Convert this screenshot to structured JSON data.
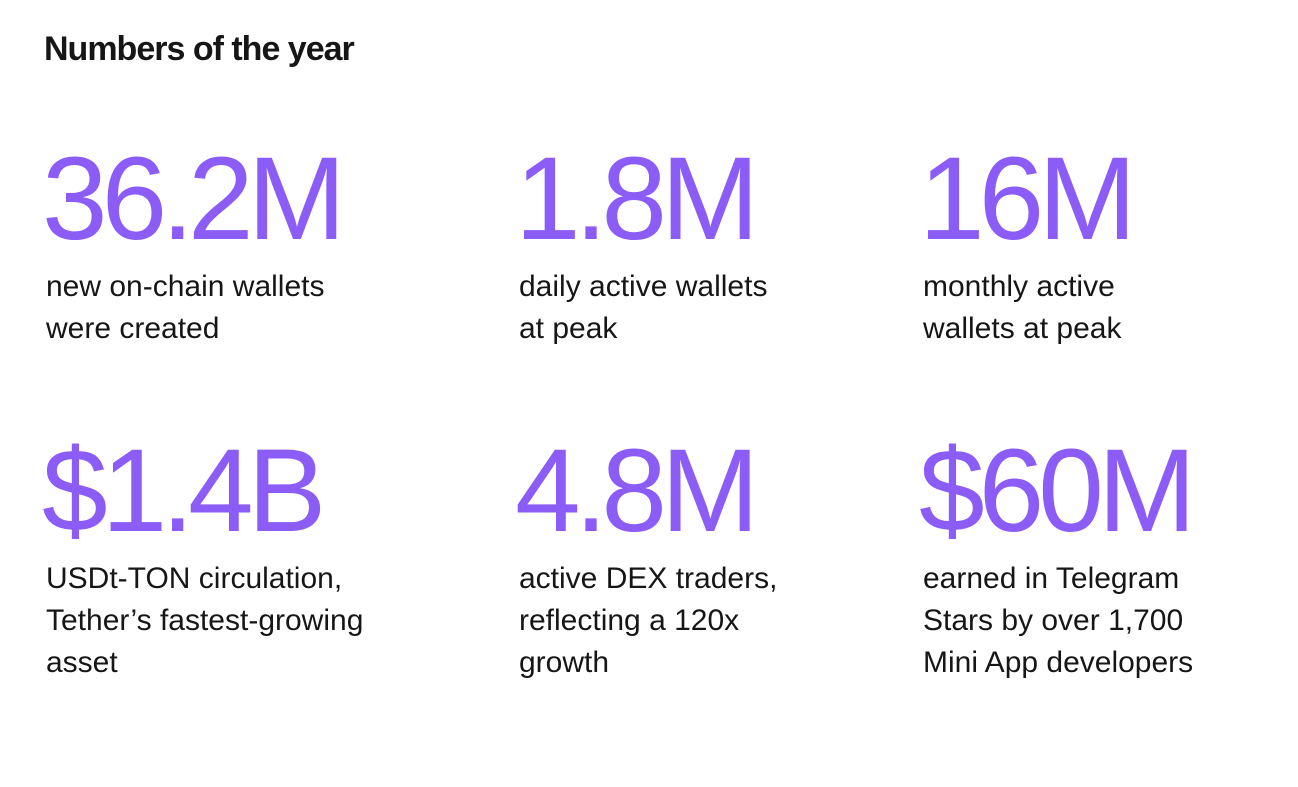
{
  "title": "Numbers of the year",
  "accent_color": "#8b5cf6",
  "stats": [
    {
      "value": "36.2M",
      "description": "new on-chain wallets\nwere created"
    },
    {
      "value": "1.8M",
      "description": "daily active wallets\nat peak"
    },
    {
      "value": "16M",
      "description": "monthly active\nwallets at peak"
    },
    {
      "value": "$1.4B",
      "description": "USDt-TON circulation,\nTether’s fastest-growing\nasset"
    },
    {
      "value": "4.8M",
      "description": "active DEX traders,\nreflecting a 120x\ngrowth"
    },
    {
      "value": "$60M",
      "description": "earned in Telegram\nStars by over 1,700\nMini App developers"
    }
  ]
}
